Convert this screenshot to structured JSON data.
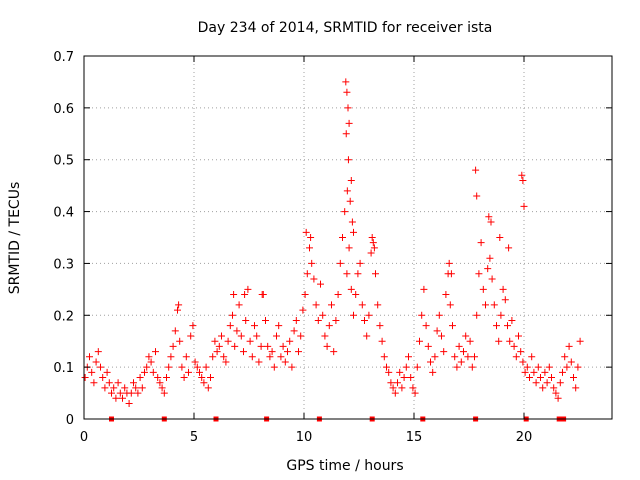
{
  "chart_data": {
    "type": "scatter",
    "title": "Day 234 of 2014, SRMTID for receiver ista",
    "xlabel": "GPS time / hours",
    "ylabel": "SRMTID / TECUs",
    "xlim": [
      0,
      24
    ],
    "ylim": [
      0,
      0.7
    ],
    "xticks": [
      {
        "value": 0,
        "label": "0"
      },
      {
        "value": 5,
        "label": "5"
      },
      {
        "value": 10,
        "label": "10"
      },
      {
        "value": 15,
        "label": "15"
      },
      {
        "value": 20,
        "label": "20"
      }
    ],
    "yticks": [
      {
        "value": 0,
        "label": "0"
      },
      {
        "value": 0.1,
        "label": "0.1"
      },
      {
        "value": 0.2,
        "label": "0.2"
      },
      {
        "value": 0.3,
        "label": "0.3"
      },
      {
        "value": 0.4,
        "label": "0.4"
      },
      {
        "value": 0.5,
        "label": "0.5"
      },
      {
        "value": 0.6,
        "label": "0.6"
      },
      {
        "value": 0.7,
        "label": "0.7"
      }
    ],
    "grid": true,
    "marker": "plus",
    "color": "#ff0000",
    "series": [
      {
        "name": "SRMTID",
        "x": [
          0.05,
          0.15,
          0.25,
          0.35,
          0.45,
          0.55,
          0.65,
          0.75,
          0.85,
          0.95,
          1.05,
          1.15,
          1.25,
          1.35,
          1.45,
          1.55,
          1.65,
          1.75,
          1.85,
          1.95,
          2.05,
          2.15,
          2.25,
          2.35,
          2.45,
          2.55,
          2.65,
          2.75,
          2.85,
          2.95,
          3.05,
          3.15,
          3.25,
          3.35,
          3.45,
          3.55,
          3.65,
          3.75,
          3.85,
          3.95,
          4.05,
          4.15,
          4.25,
          4.35,
          4.45,
          4.55,
          4.65,
          4.75,
          4.85,
          4.95,
          5.05,
          5.15,
          5.25,
          5.35,
          5.45,
          5.55,
          5.65,
          5.75,
          5.85,
          5.95,
          6.05,
          6.15,
          6.25,
          6.35,
          6.45,
          6.55,
          6.65,
          6.75,
          6.85,
          6.95,
          7.05,
          7.15,
          7.25,
          7.35,
          7.45,
          7.55,
          7.65,
          7.75,
          7.85,
          7.95,
          8.05,
          8.15,
          8.25,
          8.35,
          8.45,
          8.55,
          8.65,
          8.75,
          8.85,
          8.95,
          9.05,
          9.15,
          9.25,
          9.35,
          9.45,
          9.55,
          9.65,
          9.75,
          9.85,
          9.95,
          10.05,
          10.15,
          10.25,
          10.35,
          10.45,
          10.55,
          10.65,
          10.75,
          10.85,
          10.95,
          11.05,
          11.15,
          11.25,
          11.35,
          11.45,
          11.55,
          11.65,
          11.75,
          11.85,
          11.95,
          12.05,
          12.15,
          12.25,
          12.35,
          12.45,
          12.55,
          12.65,
          12.75,
          12.85,
          12.95,
          13.05,
          13.15,
          13.25,
          13.35,
          13.45,
          13.55,
          13.65,
          13.75,
          13.85,
          13.95,
          14.05,
          14.15,
          14.25,
          14.35,
          14.45,
          14.55,
          14.65,
          14.75,
          14.85,
          14.95,
          15.05,
          15.15,
          15.25,
          15.35,
          15.45,
          15.55,
          15.65,
          15.75,
          15.85,
          15.95,
          16.05,
          16.15,
          16.25,
          16.35,
          16.45,
          16.55,
          16.65,
          16.75,
          16.85,
          16.95,
          17.05,
          17.15,
          17.25,
          17.35,
          17.45,
          17.55,
          17.65,
          17.75,
          17.85,
          17.95,
          18.05,
          18.15,
          18.25,
          18.35,
          18.45,
          18.55,
          18.65,
          18.75,
          18.85,
          18.95,
          19.05,
          19.15,
          19.25,
          19.35,
          19.45,
          19.55,
          19.65,
          19.75,
          19.85,
          19.95,
          20.05,
          20.15,
          20.25,
          20.35,
          20.45,
          20.55,
          20.65,
          20.75,
          20.85,
          20.95,
          21.05,
          21.15,
          21.25,
          21.35,
          21.45,
          21.55,
          21.65,
          21.75,
          21.85,
          21.95,
          22.05,
          22.15,
          22.25,
          22.35,
          22.45,
          22.55,
          11.9,
          11.95,
          12.0,
          12.05,
          11.92,
          12.02,
          11.97,
          12.1,
          12.15,
          17.8,
          17.85,
          19.9,
          19.95,
          20.0,
          12.2,
          12.25,
          18.4,
          18.5,
          18.9,
          19.3,
          10.1,
          10.3,
          13.1,
          13.2,
          16.6,
          16.7,
          4.3,
          6.8,
          7.3,
          8.1
        ],
        "y": [
          0.08,
          0.1,
          0.12,
          0.09,
          0.07,
          0.11,
          0.13,
          0.1,
          0.08,
          0.06,
          0.09,
          0.07,
          0.05,
          0.06,
          0.04,
          0.07,
          0.05,
          0.04,
          0.06,
          0.05,
          0.03,
          0.05,
          0.07,
          0.06,
          0.05,
          0.08,
          0.06,
          0.09,
          0.1,
          0.12,
          0.11,
          0.09,
          0.13,
          0.08,
          0.07,
          0.06,
          0.05,
          0.08,
          0.1,
          0.12,
          0.14,
          0.17,
          0.21,
          0.15,
          0.1,
          0.08,
          0.12,
          0.09,
          0.16,
          0.18,
          0.11,
          0.1,
          0.09,
          0.08,
          0.07,
          0.1,
          0.06,
          0.08,
          0.12,
          0.15,
          0.13,
          0.14,
          0.16,
          0.12,
          0.11,
          0.15,
          0.18,
          0.2,
          0.14,
          0.17,
          0.22,
          0.16,
          0.13,
          0.19,
          0.25,
          0.15,
          0.12,
          0.18,
          0.16,
          0.11,
          0.14,
          0.24,
          0.19,
          0.14,
          0.12,
          0.13,
          0.1,
          0.16,
          0.18,
          0.12,
          0.14,
          0.11,
          0.13,
          0.15,
          0.1,
          0.17,
          0.19,
          0.13,
          0.16,
          0.21,
          0.24,
          0.28,
          0.33,
          0.3,
          0.27,
          0.22,
          0.19,
          0.26,
          0.2,
          0.16,
          0.14,
          0.18,
          0.22,
          0.13,
          0.19,
          0.24,
          0.3,
          0.35,
          0.4,
          0.28,
          0.33,
          0.25,
          0.2,
          0.24,
          0.28,
          0.3,
          0.22,
          0.19,
          0.16,
          0.2,
          0.32,
          0.34,
          0.28,
          0.22,
          0.18,
          0.15,
          0.12,
          0.1,
          0.09,
          0.07,
          0.06,
          0.05,
          0.07,
          0.09,
          0.06,
          0.08,
          0.1,
          0.12,
          0.08,
          0.06,
          0.05,
          0.1,
          0.15,
          0.2,
          0.25,
          0.18,
          0.14,
          0.11,
          0.09,
          0.12,
          0.17,
          0.2,
          0.16,
          0.13,
          0.24,
          0.28,
          0.22,
          0.18,
          0.12,
          0.1,
          0.14,
          0.11,
          0.13,
          0.16,
          0.12,
          0.15,
          0.1,
          0.12,
          0.2,
          0.28,
          0.34,
          0.25,
          0.22,
          0.29,
          0.31,
          0.27,
          0.22,
          0.18,
          0.15,
          0.2,
          0.25,
          0.23,
          0.18,
          0.15,
          0.19,
          0.14,
          0.12,
          0.16,
          0.13,
          0.11,
          0.09,
          0.1,
          0.08,
          0.12,
          0.09,
          0.07,
          0.1,
          0.08,
          0.06,
          0.09,
          0.07,
          0.1,
          0.08,
          0.06,
          0.05,
          0.04,
          0.07,
          0.09,
          0.12,
          0.1,
          0.14,
          0.11,
          0.08,
          0.06,
          0.1,
          0.15,
          0.65,
          0.63,
          0.6,
          0.57,
          0.55,
          0.5,
          0.44,
          0.42,
          0.46,
          0.48,
          0.43,
          0.47,
          0.46,
          0.41,
          0.38,
          0.36,
          0.39,
          0.38,
          0.35,
          0.33,
          0.36,
          0.35,
          0.35,
          0.33,
          0.3,
          0.28,
          0.22,
          0.24,
          0.24,
          0.24
        ],
        "gaps_x": [
          1.25,
          3.65,
          6.0,
          8.3,
          10.7,
          13.1,
          15.4,
          17.8,
          20.1,
          21.6,
          21.8
        ]
      }
    ]
  }
}
